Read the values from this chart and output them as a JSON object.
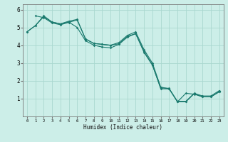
{
  "title": "",
  "xlabel": "Humidex (Indice chaleur)",
  "ylabel": "",
  "background_color": "#cceee8",
  "grid_color": "#aad8d0",
  "line_color": "#1a7a6e",
  "xlim": [
    -0.5,
    23.5
  ],
  "ylim": [
    0,
    6.3
  ],
  "xticks": [
    0,
    1,
    2,
    3,
    4,
    5,
    6,
    7,
    8,
    9,
    10,
    11,
    12,
    13,
    14,
    15,
    16,
    17,
    18,
    19,
    20,
    21,
    22,
    23
  ],
  "yticks": [
    1,
    2,
    3,
    4,
    5,
    6
  ],
  "line1_x": [
    0,
    1,
    2,
    3,
    4,
    5,
    6,
    7,
    8,
    9,
    10,
    11,
    12,
    13,
    14,
    15,
    16,
    17,
    18,
    19,
    20,
    21,
    22,
    23
  ],
  "line1_y": [
    4.75,
    5.1,
    5.65,
    5.3,
    5.2,
    5.35,
    5.45,
    4.35,
    4.1,
    4.05,
    4.0,
    4.15,
    4.55,
    4.75,
    3.75,
    3.0,
    1.65,
    1.55,
    0.85,
    0.85,
    1.3,
    1.15,
    1.15,
    1.45
  ],
  "line2_x": [
    0,
    1,
    2,
    3,
    4,
    5,
    6,
    7,
    8,
    9,
    10,
    11,
    12,
    13,
    14,
    15,
    16,
    17,
    18,
    19,
    20,
    21,
    22,
    23
  ],
  "line2_y": [
    4.75,
    5.1,
    5.6,
    5.3,
    5.2,
    5.3,
    5.0,
    4.25,
    4.0,
    3.9,
    3.85,
    4.05,
    4.45,
    4.65,
    3.65,
    2.9,
    1.55,
    1.55,
    0.82,
    1.3,
    1.25,
    1.1,
    1.1,
    1.4
  ],
  "line3_x": [
    1,
    2,
    3,
    4,
    5,
    6,
    7,
    8,
    9,
    10,
    11,
    12,
    13,
    14,
    15,
    16,
    17,
    18,
    19,
    20,
    21,
    22,
    23
  ],
  "line3_y": [
    5.65,
    5.55,
    5.25,
    5.15,
    5.28,
    5.42,
    4.35,
    4.1,
    4.05,
    4.0,
    4.08,
    4.5,
    4.65,
    3.6,
    2.88,
    1.6,
    1.58,
    0.82,
    0.82,
    1.28,
    1.1,
    1.1,
    1.38
  ]
}
